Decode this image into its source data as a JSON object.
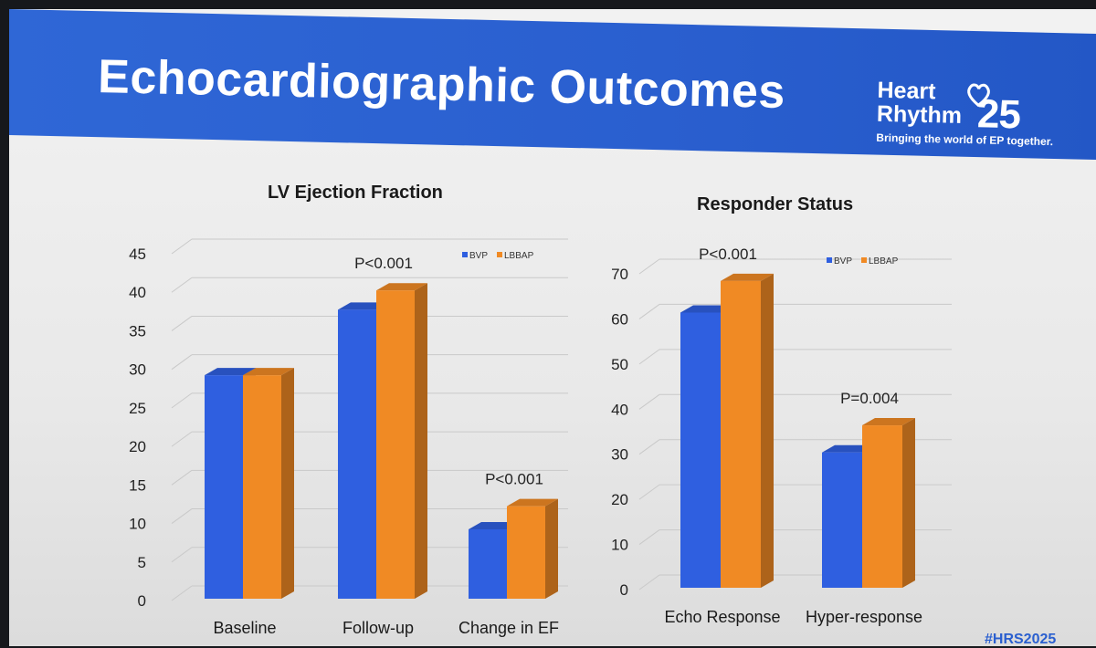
{
  "header": {
    "title": "Echocardiographic Outcomes",
    "logo_line1": "Heart",
    "logo_line2": "Rhythm",
    "logo_number": "25",
    "logo_tagline": "Bringing the world of EP together."
  },
  "footer": {
    "hashtag": "#HRS2025"
  },
  "colors": {
    "bvp": "#2f5fe0",
    "lbbap": "#f08a24",
    "banner": "#2a5fcf"
  },
  "chart_data": [
    {
      "type": "bar",
      "title": "LV Ejection Fraction",
      "categories": [
        "Baseline",
        "Follow-up",
        "Change in EF"
      ],
      "series": [
        {
          "name": "BVP",
          "values": [
            29,
            37.5,
            9
          ]
        },
        {
          "name": "LBBAP",
          "values": [
            29,
            40,
            12
          ]
        }
      ],
      "annotations": [
        "",
        "P<0.001",
        "P<0.001"
      ],
      "yticks": [
        "0",
        "5",
        "10",
        "15",
        "20",
        "25",
        "30",
        "35",
        "40",
        "45"
      ],
      "ylim": [
        0,
        45
      ],
      "legend": "top-right"
    },
    {
      "type": "bar",
      "title": "Responder Status",
      "categories": [
        "Echo Response",
        "Hyper-response"
      ],
      "series": [
        {
          "name": "BVP",
          "values": [
            61,
            30
          ]
        },
        {
          "name": "LBBAP",
          "values": [
            68,
            36
          ]
        }
      ],
      "annotations": [
        "P<0.001",
        "P=0.004"
      ],
      "yticks": [
        "0",
        "10",
        "20",
        "30",
        "40",
        "50",
        "60",
        "70"
      ],
      "ylim": [
        0,
        70
      ],
      "legend": "top-right"
    }
  ]
}
